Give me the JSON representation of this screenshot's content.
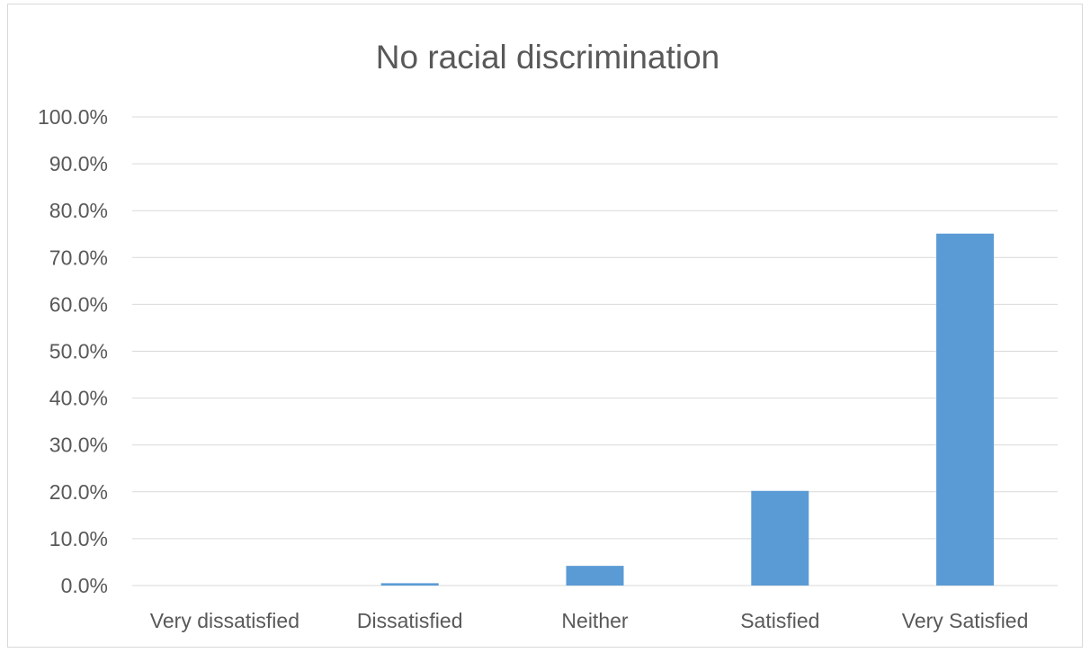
{
  "chart_data": {
    "type": "bar",
    "title": "No racial discrimination",
    "xlabel": "",
    "ylabel": "",
    "categories": [
      "Very dissatisfied",
      "Dissatisfied",
      "Neither",
      "Satisfied",
      "Very Satisfied"
    ],
    "series": [
      {
        "values": [
          0.0,
          0.5,
          4.2,
          20.2,
          75.1
        ],
        "color": "#5b9bd5"
      }
    ],
    "ylim": [
      0,
      100
    ],
    "yticks": [
      "0.0%",
      "10.0%",
      "20.0%",
      "30.0%",
      "40.0%",
      "50.0%",
      "60.0%",
      "70.0%",
      "80.0%",
      "90.0%",
      "100.0%"
    ],
    "grid": true,
    "legend": "none",
    "colors": {
      "bar": "#5b9bd5",
      "grid": "#d9d9d9",
      "text": "#595959",
      "frame": "#d9d9d9"
    }
  }
}
